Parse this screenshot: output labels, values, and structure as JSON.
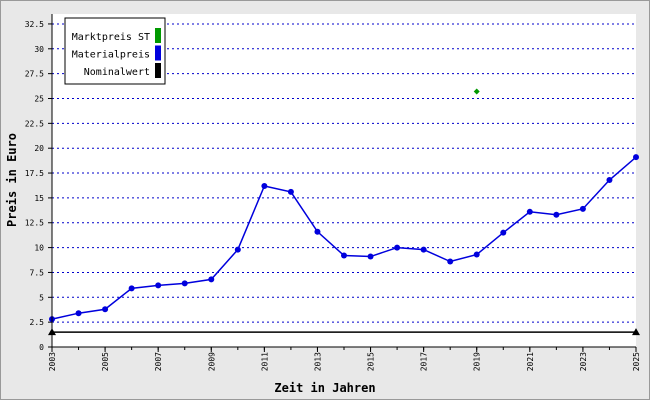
{
  "chart_data": {
    "type": "line",
    "x_label": "Zeit in Jahren",
    "y_label": "Preis in Euro",
    "xlim": [
      2003,
      2025
    ],
    "xticks": [
      2003,
      2005,
      2007,
      2009,
      2011,
      2013,
      2015,
      2017,
      2019,
      2021,
      2023,
      2025
    ],
    "ylim": [
      0,
      33.5
    ],
    "yticks": [
      0,
      2.5,
      5,
      7.5,
      10,
      12.5,
      15,
      17.5,
      20,
      22.5,
      25,
      27.5,
      30,
      32.5
    ],
    "grid": true,
    "legend": "upper left",
    "x": [
      2003,
      2004,
      2005,
      2006,
      2007,
      2008,
      2009,
      2010,
      2011,
      2012,
      2013,
      2014,
      2015,
      2016,
      2017,
      2018,
      2019,
      2020,
      2021,
      2022,
      2023,
      2024,
      2025
    ],
    "series": [
      {
        "name": "Marktpreis ST",
        "color": "#009900",
        "marker": "diamond",
        "x": [
          2019
        ],
        "values": [
          25.7
        ]
      },
      {
        "name": "Materialpreis",
        "color": "#0000dd",
        "marker": "circle",
        "values": [
          2.8,
          3.4,
          3.8,
          5.9,
          6.2,
          6.4,
          6.8,
          9.8,
          16.2,
          15.6,
          11.6,
          9.2,
          9.1,
          10.0,
          9.8,
          8.6,
          9.3,
          11.5,
          13.6,
          13.3,
          13.9,
          16.8,
          19.1
        ]
      },
      {
        "name": "Nominalwert",
        "color": "#000000",
        "marker": "triangle",
        "x": [
          2003,
          2025
        ],
        "values": [
          1.5,
          1.5
        ]
      }
    ]
  }
}
